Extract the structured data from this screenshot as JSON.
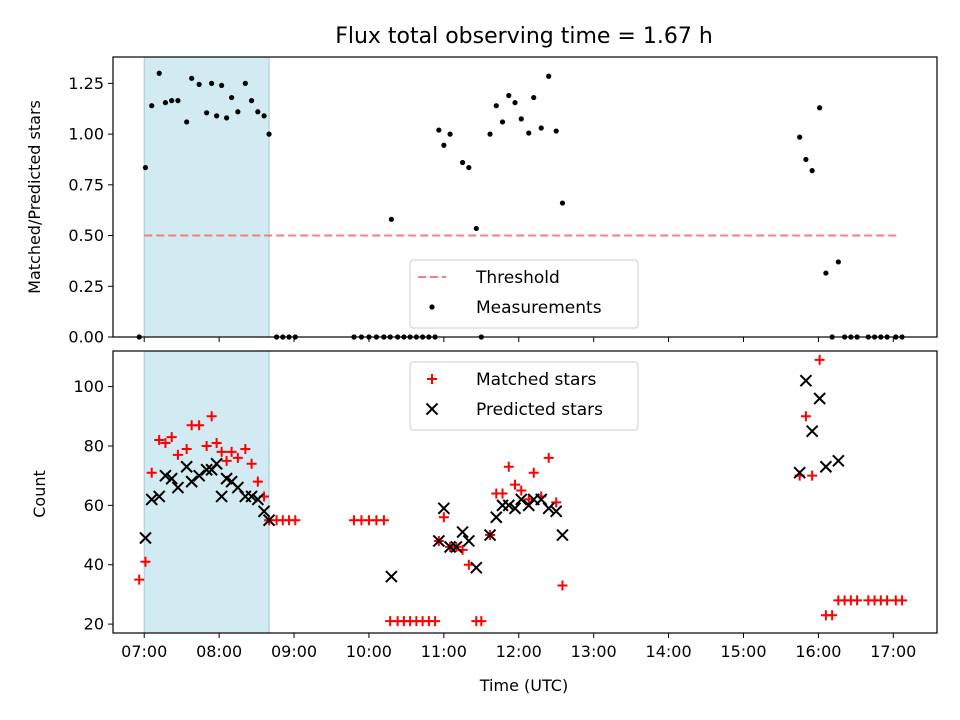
{
  "chart_data": [
    {
      "type": "scatter",
      "title": "Flux total observing time = 1.67 h",
      "xlabel": "",
      "ylabel": "Matched/Predicted stars",
      "xlim": [
        "06:35",
        "17:35"
      ],
      "ylim": [
        0,
        1.38
      ],
      "xticks": [
        "07:00",
        "08:00",
        "09:00",
        "10:00",
        "11:00",
        "12:00",
        "13:00",
        "14:00",
        "15:00",
        "16:00",
        "17:00"
      ],
      "yticks": [
        "0.00",
        "0.25",
        "0.50",
        "0.75",
        "1.00",
        "1.25"
      ],
      "highlight_span": [
        "07:00",
        "08:40"
      ],
      "highlight_color": "#add8e6",
      "threshold": {
        "name": "Threshold",
        "value": 0.5,
        "x": [
          "07:00",
          "17:05"
        ],
        "color": "#f08080"
      },
      "legend": {
        "placement": "lower-center",
        "entries": [
          "Threshold",
          "Measurements"
        ]
      },
      "series": [
        {
          "name": "Measurements",
          "color": "#000000",
          "points": [
            [
              "06:56",
              0.0
            ],
            [
              "07:01",
              0.835
            ],
            [
              "07:06",
              1.14
            ],
            [
              "07:12",
              1.3
            ],
            [
              "07:17",
              1.155
            ],
            [
              "07:22",
              1.165
            ],
            [
              "07:27",
              1.165
            ],
            [
              "07:34",
              1.06
            ],
            [
              "07:38",
              1.275
            ],
            [
              "07:44",
              1.245
            ],
            [
              "07:50",
              1.105
            ],
            [
              "07:54",
              1.25
            ],
            [
              "07:58",
              1.09
            ],
            [
              "08:02",
              1.24
            ],
            [
              "08:06",
              1.08
            ],
            [
              "08:10",
              1.18
            ],
            [
              "08:15",
              1.11
            ],
            [
              "08:21",
              1.25
            ],
            [
              "08:26",
              1.165
            ],
            [
              "08:31",
              1.11
            ],
            [
              "08:36",
              1.09
            ],
            [
              "08:40",
              1.0
            ],
            [
              "08:46",
              0.0
            ],
            [
              "08:51",
              0.0
            ],
            [
              "08:56",
              0.0
            ],
            [
              "09:01",
              0.0
            ],
            [
              "09:48",
              0.0
            ],
            [
              "09:54",
              0.0
            ],
            [
              "10:00",
              0.0
            ],
            [
              "10:06",
              0.0
            ],
            [
              "10:12",
              0.0
            ],
            [
              "10:17",
              0.0
            ],
            [
              "10:18",
              0.58
            ],
            [
              "10:23",
              0.0
            ],
            [
              "10:28",
              0.0
            ],
            [
              "10:33",
              0.0
            ],
            [
              "10:38",
              0.0
            ],
            [
              "10:43",
              0.0
            ],
            [
              "10:48",
              0.0
            ],
            [
              "10:53",
              0.0
            ],
            [
              "10:56",
              1.02
            ],
            [
              "11:00",
              0.945
            ],
            [
              "11:05",
              1.0
            ],
            [
              "11:15",
              0.86
            ],
            [
              "11:20",
              0.835
            ],
            [
              "11:26",
              0.535
            ],
            [
              "11:30",
              0.0
            ],
            [
              "11:37",
              1.0
            ],
            [
              "11:42",
              1.14
            ],
            [
              "11:47",
              1.06
            ],
            [
              "11:52",
              1.19
            ],
            [
              "11:57",
              1.155
            ],
            [
              "12:02",
              1.075
            ],
            [
              "12:08",
              1.005
            ],
            [
              "12:12",
              1.18
            ],
            [
              "12:18",
              1.03
            ],
            [
              "12:24",
              1.285
            ],
            [
              "12:30",
              1.015
            ],
            [
              "12:35",
              0.66
            ],
            [
              "15:45",
              0.985
            ],
            [
              "15:50",
              0.875
            ],
            [
              "15:55",
              0.82
            ],
            [
              "16:01",
              1.13
            ],
            [
              "16:06",
              0.315
            ],
            [
              "16:11",
              0.0
            ],
            [
              "16:16",
              0.37
            ],
            [
              "16:21",
              0.0
            ],
            [
              "16:26",
              0.0
            ],
            [
              "16:31",
              0.0
            ],
            [
              "16:40",
              0.0
            ],
            [
              "16:45",
              0.0
            ],
            [
              "16:50",
              0.0
            ],
            [
              "16:55",
              0.0
            ],
            [
              "17:02",
              0.0
            ],
            [
              "17:07",
              0.0
            ]
          ]
        }
      ]
    },
    {
      "type": "scatter",
      "title": "",
      "xlabel": "Time (UTC)",
      "ylabel": "Count",
      "xlim": [
        "06:35",
        "17:35"
      ],
      "ylim": [
        17,
        112
      ],
      "xticks": [
        "07:00",
        "08:00",
        "09:00",
        "10:00",
        "11:00",
        "12:00",
        "13:00",
        "14:00",
        "15:00",
        "16:00",
        "17:00"
      ],
      "yticks": [
        "20",
        "40",
        "60",
        "80",
        "100"
      ],
      "highlight_span": [
        "07:00",
        "08:40"
      ],
      "highlight_color": "#add8e6",
      "legend": {
        "placement": "top-center",
        "entries": [
          "Matched stars",
          "Predicted stars"
        ]
      },
      "series": [
        {
          "name": "Matched stars",
          "marker": "plus",
          "color": "#ff0000",
          "points": [
            [
              "06:56",
              35
            ],
            [
              "07:01",
              41
            ],
            [
              "07:06",
              71
            ],
            [
              "07:12",
              82
            ],
            [
              "07:17",
              81
            ],
            [
              "07:22",
              83
            ],
            [
              "07:27",
              77
            ],
            [
              "07:34",
              79
            ],
            [
              "07:38",
              87
            ],
            [
              "07:44",
              87
            ],
            [
              "07:50",
              80
            ],
            [
              "07:54",
              90
            ],
            [
              "07:58",
              81
            ],
            [
              "08:02",
              78
            ],
            [
              "08:06",
              75
            ],
            [
              "08:10",
              78
            ],
            [
              "08:15",
              76
            ],
            [
              "08:21",
              79
            ],
            [
              "08:26",
              74
            ],
            [
              "08:31",
              68
            ],
            [
              "08:36",
              63
            ],
            [
              "08:40",
              55
            ],
            [
              "08:46",
              55
            ],
            [
              "08:51",
              55
            ],
            [
              "08:56",
              55
            ],
            [
              "09:01",
              55
            ],
            [
              "09:48",
              55
            ],
            [
              "09:54",
              55
            ],
            [
              "10:00",
              55
            ],
            [
              "10:06",
              55
            ],
            [
              "10:12",
              55
            ],
            [
              "10:17",
              21
            ],
            [
              "10:23",
              21
            ],
            [
              "10:28",
              21
            ],
            [
              "10:33",
              21
            ],
            [
              "10:38",
              21
            ],
            [
              "10:43",
              21
            ],
            [
              "10:48",
              21
            ],
            [
              "10:53",
              21
            ],
            [
              "10:56",
              48
            ],
            [
              "11:00",
              56
            ],
            [
              "11:05",
              46
            ],
            [
              "11:10",
              46
            ],
            [
              "11:15",
              45
            ],
            [
              "11:20",
              40
            ],
            [
              "11:26",
              21
            ],
            [
              "11:30",
              21
            ],
            [
              "11:37",
              50
            ],
            [
              "11:42",
              64
            ],
            [
              "11:47",
              64
            ],
            [
              "11:52",
              73
            ],
            [
              "11:57",
              67
            ],
            [
              "12:02",
              65
            ],
            [
              "12:08",
              62
            ],
            [
              "12:12",
              71
            ],
            [
              "12:18",
              63
            ],
            [
              "12:24",
              76
            ],
            [
              "12:30",
              61
            ],
            [
              "12:35",
              33
            ],
            [
              "15:45",
              70
            ],
            [
              "15:50",
              90
            ],
            [
              "15:55",
              70
            ],
            [
              "16:01",
              109
            ],
            [
              "16:06",
              23
            ],
            [
              "16:11",
              23
            ],
            [
              "16:16",
              28
            ],
            [
              "16:21",
              28
            ],
            [
              "16:26",
              28
            ],
            [
              "16:31",
              28
            ],
            [
              "16:40",
              28
            ],
            [
              "16:45",
              28
            ],
            [
              "16:50",
              28
            ],
            [
              "16:55",
              28
            ],
            [
              "17:02",
              28
            ],
            [
              "17:07",
              28
            ]
          ]
        },
        {
          "name": "Predicted stars",
          "marker": "x",
          "color": "#000000",
          "points": [
            [
              "07:01",
              49
            ],
            [
              "07:06",
              62
            ],
            [
              "07:12",
              63
            ],
            [
              "07:17",
              70
            ],
            [
              "07:22",
              69
            ],
            [
              "07:27",
              66
            ],
            [
              "07:34",
              73
            ],
            [
              "07:38",
              68
            ],
            [
              "07:44",
              70
            ],
            [
              "07:50",
              72
            ],
            [
              "07:54",
              72
            ],
            [
              "07:58",
              74
            ],
            [
              "08:02",
              63
            ],
            [
              "08:06",
              69
            ],
            [
              "08:10",
              68
            ],
            [
              "08:15",
              66
            ],
            [
              "08:21",
              63
            ],
            [
              "08:26",
              63
            ],
            [
              "08:31",
              62
            ],
            [
              "08:36",
              58
            ],
            [
              "08:40",
              55
            ],
            [
              "10:18",
              36
            ],
            [
              "10:56",
              48
            ],
            [
              "11:00",
              59
            ],
            [
              "11:05",
              46
            ],
            [
              "11:10",
              46
            ],
            [
              "11:15",
              51
            ],
            [
              "11:20",
              48
            ],
            [
              "11:26",
              39
            ],
            [
              "11:37",
              50
            ],
            [
              "11:42",
              56
            ],
            [
              "11:47",
              60
            ],
            [
              "11:52",
              60
            ],
            [
              "11:57",
              59
            ],
            [
              "12:02",
              62
            ],
            [
              "12:08",
              60
            ],
            [
              "12:12",
              62
            ],
            [
              "12:18",
              62
            ],
            [
              "12:24",
              59
            ],
            [
              "12:30",
              58
            ],
            [
              "12:35",
              50
            ],
            [
              "15:45",
              71
            ],
            [
              "15:50",
              102
            ],
            [
              "15:55",
              85
            ],
            [
              "16:01",
              96
            ],
            [
              "16:06",
              73
            ],
            [
              "16:16",
              75
            ]
          ]
        }
      ]
    }
  ]
}
